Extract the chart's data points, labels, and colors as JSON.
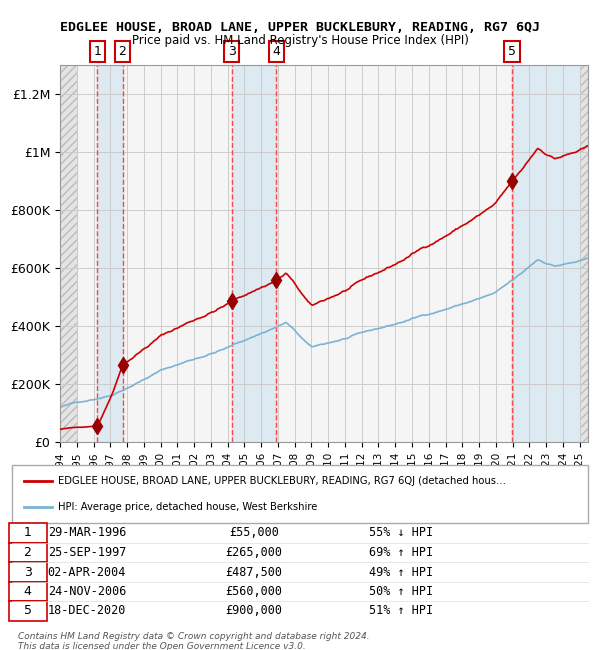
{
  "title": "EDGLEE HOUSE, BROAD LANE, UPPER BUCKLEBURY, READING, RG7 6QJ",
  "subtitle": "Price paid vs. HM Land Registry's House Price Index (HPI)",
  "xlim": [
    1994,
    2025.5
  ],
  "ylim": [
    0,
    1300000
  ],
  "yticks": [
    0,
    200000,
    400000,
    600000,
    800000,
    1000000,
    1200000
  ],
  "ytick_labels": [
    "£0",
    "£200K",
    "£400K",
    "£600K",
    "£800K",
    "£1M",
    "£1.2M"
  ],
  "xticks": [
    1994,
    1995,
    1996,
    1997,
    1998,
    1999,
    2000,
    2001,
    2002,
    2003,
    2004,
    2005,
    2006,
    2007,
    2008,
    2009,
    2010,
    2011,
    2012,
    2013,
    2014,
    2015,
    2016,
    2017,
    2018,
    2019,
    2020,
    2021,
    2022,
    2023,
    2024,
    2025
  ],
  "hpi_line_color": "#7ab3d4",
  "price_line_color": "#cc0000",
  "marker_color": "#990000",
  "dashed_line_color": "#ff4444",
  "shade_color": "#d0e4f0",
  "transactions": [
    {
      "id": 1,
      "year": 1996.23,
      "price": 55000,
      "label": "1"
    },
    {
      "id": 2,
      "year": 1997.73,
      "price": 265000,
      "label": "2"
    },
    {
      "id": 3,
      "year": 2004.25,
      "price": 487500,
      "label": "3"
    },
    {
      "id": 4,
      "year": 2006.9,
      "price": 560000,
      "label": "4"
    },
    {
      "id": 5,
      "year": 2020.96,
      "price": 900000,
      "label": "5"
    }
  ],
  "legend_line1": "EDGLEE HOUSE, BROAD LANE, UPPER BUCKLEBURY, READING, RG7 6QJ (detached hous…",
  "legend_line2": "HPI: Average price, detached house, West Berkshire",
  "table_rows": [
    {
      "id": "1",
      "date": "29-MAR-1996",
      "price": "£55,000",
      "hpi": "55% ↓ HPI"
    },
    {
      "id": "2",
      "date": "25-SEP-1997",
      "price": "£265,000",
      "hpi": "69% ↑ HPI"
    },
    {
      "id": "3",
      "date": "02-APR-2004",
      "price": "£487,500",
      "hpi": "49% ↑ HPI"
    },
    {
      "id": "4",
      "date": "24-NOV-2006",
      "price": "£560,000",
      "hpi": "50% ↑ HPI"
    },
    {
      "id": "5",
      "date": "18-DEC-2020",
      "price": "£900,000",
      "hpi": "51% ↑ HPI"
    }
  ],
  "footer": "Contains HM Land Registry data © Crown copyright and database right 2024.\nThis data is licensed under the Open Government Licence v3.0."
}
